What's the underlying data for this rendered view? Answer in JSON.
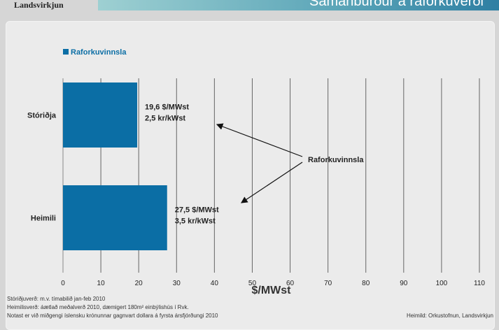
{
  "header": {
    "logo": "Landsvirkjun",
    "title": "Samanburður á raforkuverði"
  },
  "chart_data": {
    "type": "bar",
    "orientation": "horizontal",
    "categories": [
      "Stóriðja",
      "Heimili"
    ],
    "series": [
      {
        "name": "Raforkuvinnsla",
        "values": [
          19.6,
          27.5
        ],
        "color": "#0b6ea5"
      }
    ],
    "data_labels": [
      [
        "19,6 $/MWst",
        "2,5 kr/kWst"
      ],
      [
        "27,5 $/MWst",
        "3,5 kr/kWst"
      ]
    ],
    "annotation": "Raforkuvinnsla",
    "xlabel": "$/MWst",
    "xlim": [
      0,
      110
    ],
    "xticks": [
      0,
      10,
      20,
      30,
      40,
      50,
      60,
      70,
      80,
      90,
      100,
      110
    ],
    "grid": true,
    "legend": "top-left"
  },
  "notes": [
    "Stóriðjuverð: m.v. tímabilið jan-feb 2010",
    "Heimilisverð: áætlað meðalverð 2010, dæmigert 180m² einbýlishús í Rvk.",
    "Notast er við miðgengi íslensku krónunnar gagnvart dollara á fyrsta ársfjórðungi 2010"
  ],
  "source": "Heimild: Orkustofnun, Landsvirkjun"
}
